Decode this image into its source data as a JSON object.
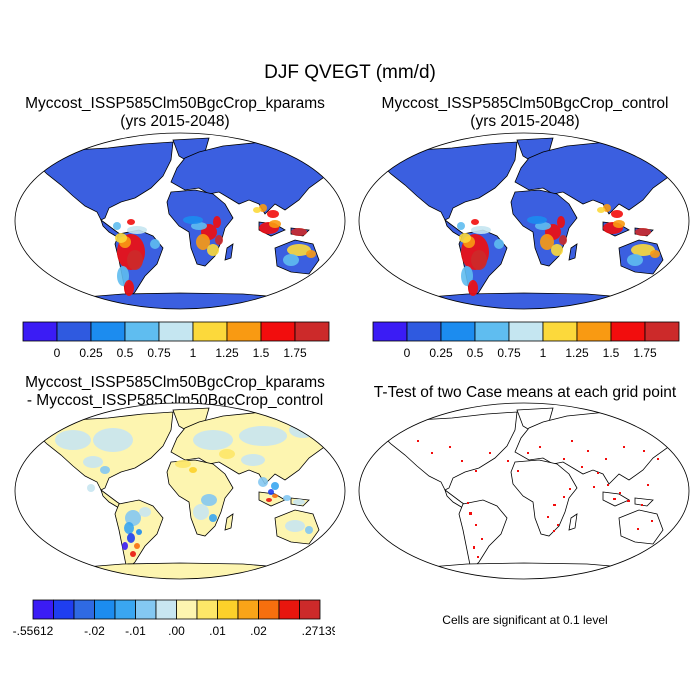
{
  "title": "DJF QVEGT (mm/d)",
  "panels": [
    {
      "title_line1": "Myccost_ISSP585Clm50BgcCrop_kparams",
      "title_line2": "(yrs 2015-2048)"
    },
    {
      "title_line1": "Myccost_ISSP585Clm50BgcCrop_control",
      "title_line2": "(yrs 2015-2048)"
    },
    {
      "title_line1": "Myccost_ISSP585Clm50BgcCrop_kparams",
      "title_line2": "- Myccost_ISSP585Clm50BgcCrop_control"
    },
    {
      "title_line1": "T-Test of two Case means at each grid point",
      "title_line2": ""
    }
  ],
  "significance_note": "Cells are significant at 0.1 level",
  "chart_data": [
    {
      "type": "heatmap",
      "title": "Myccost_ISSP585Clm50BgcCrop_kparams (yrs 2015-2048)",
      "map_projection": "robinson",
      "colorbar": {
        "levels": [
          0,
          0.25,
          0.5,
          0.75,
          1,
          1.25,
          1.5,
          1.75
        ],
        "tick_labels": [
          "0",
          "0.25",
          "0.5",
          "0.75",
          "1",
          "1.25",
          "1.5",
          "1.75"
        ],
        "colors": [
          "#3b1cf5",
          "#2f5ae0",
          "#1c8cef",
          "#5fbdf0",
          "#c5e6f1",
          "#fcd93b",
          "#f99a12",
          "#f20d0d",
          "#cc2a2a"
        ]
      },
      "regions": [
        {
          "region": "high latitudes, deserts, ocean",
          "value_range": "< 0.25"
        },
        {
          "region": "Amazon basin",
          "value_range": "1.25 - >1.75"
        },
        {
          "region": "Southern Africa",
          "value_range": "0.75 - 1.75"
        },
        {
          "region": "Maritime Southeast Asia",
          "value_range": "1.5 - >1.75"
        },
        {
          "region": "Northern Australia",
          "value_range": "0.5 - 1.25"
        }
      ]
    },
    {
      "type": "heatmap",
      "title": "Myccost_ISSP585Clm50BgcCrop_control (yrs 2015-2048)",
      "map_projection": "robinson",
      "colorbar": {
        "levels": [
          0,
          0.25,
          0.5,
          0.75,
          1,
          1.25,
          1.5,
          1.75
        ],
        "tick_labels": [
          "0",
          "0.25",
          "0.5",
          "0.75",
          "1",
          "1.25",
          "1.5",
          "1.75"
        ],
        "colors": [
          "#3b1cf5",
          "#2f5ae0",
          "#1c8cef",
          "#5fbdf0",
          "#c5e6f1",
          "#fcd93b",
          "#f99a12",
          "#f20d0d",
          "#cc2a2a"
        ]
      },
      "regions": [
        {
          "region": "high latitudes, deserts, ocean",
          "value_range": "< 0.25"
        },
        {
          "region": "Amazon basin",
          "value_range": "1.25 - >1.75"
        },
        {
          "region": "Southern Africa",
          "value_range": "0.75 - 1.75"
        },
        {
          "region": "Maritime Southeast Asia",
          "value_range": "1.5 - >1.75"
        },
        {
          "region": "Northern Australia",
          "value_range": "0.5 - 1.25"
        }
      ]
    },
    {
      "type": "heatmap",
      "title": "Myccost_ISSP585Clm50BgcCrop_kparams - Myccost_ISSP585Clm50BgcCrop_control",
      "map_projection": "robinson",
      "colorbar": {
        "min": -0.55612,
        "max": 0.27139,
        "tick_labels": [
          "-.55612",
          "-.02",
          "-.01",
          ".00",
          ".01",
          ".02",
          ".27139"
        ],
        "tick_box_index": [
          0,
          3,
          5,
          7,
          9,
          11,
          13
        ],
        "colors": [
          "#3b1cf5",
          "#1f3ef0",
          "#2f6ae3",
          "#1c8cef",
          "#3aa6f1",
          "#84c8f2",
          "#c8e6f1",
          "#fdf5b0",
          "#fde768",
          "#fcd12a",
          "#f9a418",
          "#f76f0e",
          "#e8160e",
          "#cc2a2a"
        ]
      },
      "regions": [
        {
          "region": "most land",
          "value_range": "-0.01 - 0.01"
        },
        {
          "region": "Amazon / South America",
          "value_range": "-0.55612 - -0.01"
        },
        {
          "region": "Southeast Asia",
          "value_range": "-0.02 - 0.27139"
        },
        {
          "region": "Antarctica",
          "value_range": "0.00 - 0.01"
        }
      ]
    },
    {
      "type": "heatmap",
      "title": "T-Test of two Case means at each grid point",
      "map_projection": "robinson",
      "significance_level": 0.1,
      "significant_color": "#f20d0d"
    }
  ]
}
